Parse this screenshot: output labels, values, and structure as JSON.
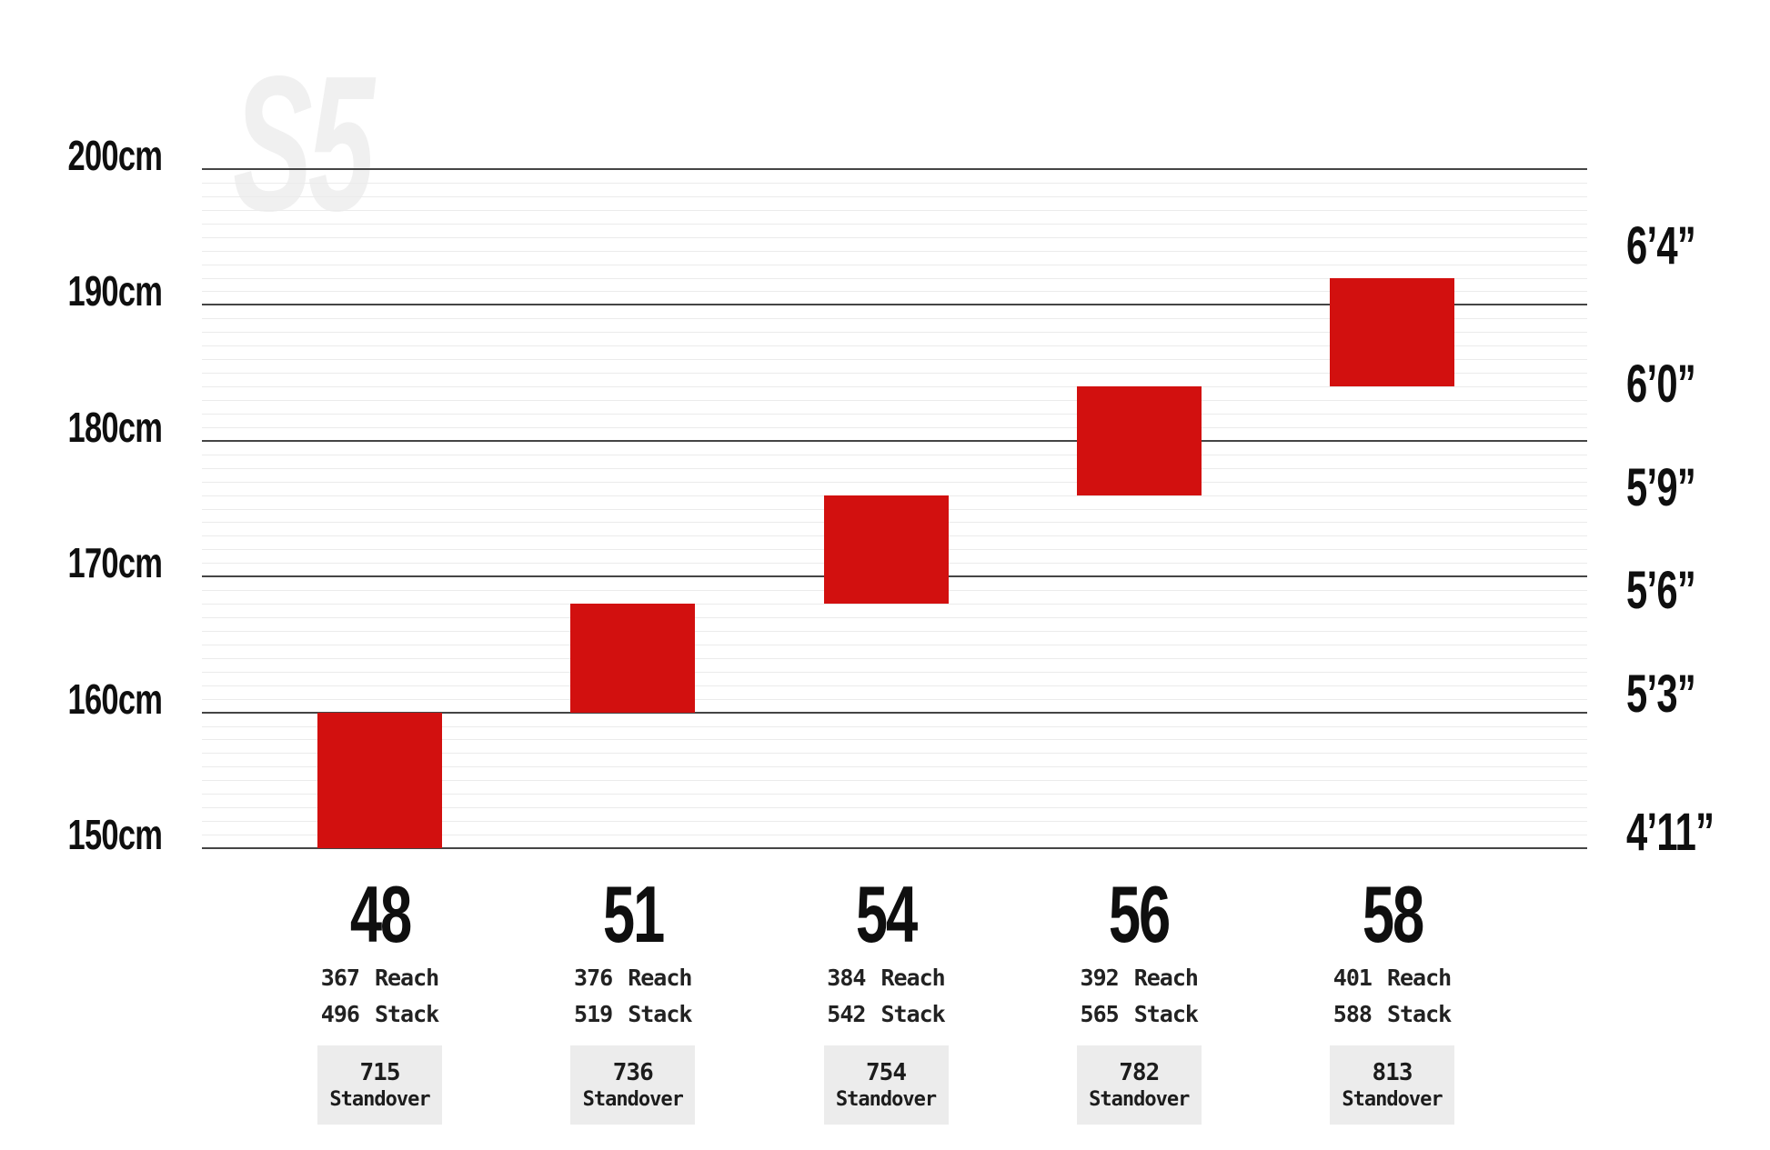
{
  "chart_data": {
    "type": "bar",
    "description": "Rider height fit ranges by frame size",
    "watermark": "S5",
    "bar_color": "#d2100f",
    "ylim_cm": [
      150,
      200
    ],
    "grid": {
      "minor_every_cm": 1,
      "major_every_cm": 10,
      "minor_on": true
    },
    "y_axis_left": {
      "unit": "cm",
      "ticks": [
        {
          "label": "200cm",
          "cm": 200
        },
        {
          "label": "190cm",
          "cm": 190
        },
        {
          "label": "180cm",
          "cm": 180
        },
        {
          "label": "170cm",
          "cm": 170
        },
        {
          "label": "160cm",
          "cm": 160
        },
        {
          "label": "150cm",
          "cm": 150
        }
      ]
    },
    "y_axis_right": {
      "unit": "feet-inches",
      "ticks": [
        {
          "label": "6’4”",
          "cm": 193.04
        },
        {
          "label": "6’0”",
          "cm": 182.88
        },
        {
          "label": "5’9”",
          "cm": 175.26
        },
        {
          "label": "5’6”",
          "cm": 167.64
        },
        {
          "label": "5’3”",
          "cm": 160.02
        },
        {
          "label": "4’11”",
          "cm": 149.86
        }
      ]
    },
    "labels": {
      "reach": "Reach",
      "stack": "Stack",
      "standover": "Standover"
    },
    "sizes": [
      {
        "size": "48",
        "fit_cm": [
          150,
          160
        ],
        "reach": "367",
        "stack": "496",
        "standover": "715"
      },
      {
        "size": "51",
        "fit_cm": [
          160,
          168
        ],
        "reach": "376",
        "stack": "519",
        "standover": "736"
      },
      {
        "size": "54",
        "fit_cm": [
          168,
          176
        ],
        "reach": "384",
        "stack": "542",
        "standover": "754"
      },
      {
        "size": "56",
        "fit_cm": [
          176,
          184
        ],
        "reach": "392",
        "stack": "565",
        "standover": "782"
      },
      {
        "size": "58",
        "fit_cm": [
          184,
          192
        ],
        "reach": "401",
        "stack": "588",
        "standover": "813"
      }
    ]
  }
}
